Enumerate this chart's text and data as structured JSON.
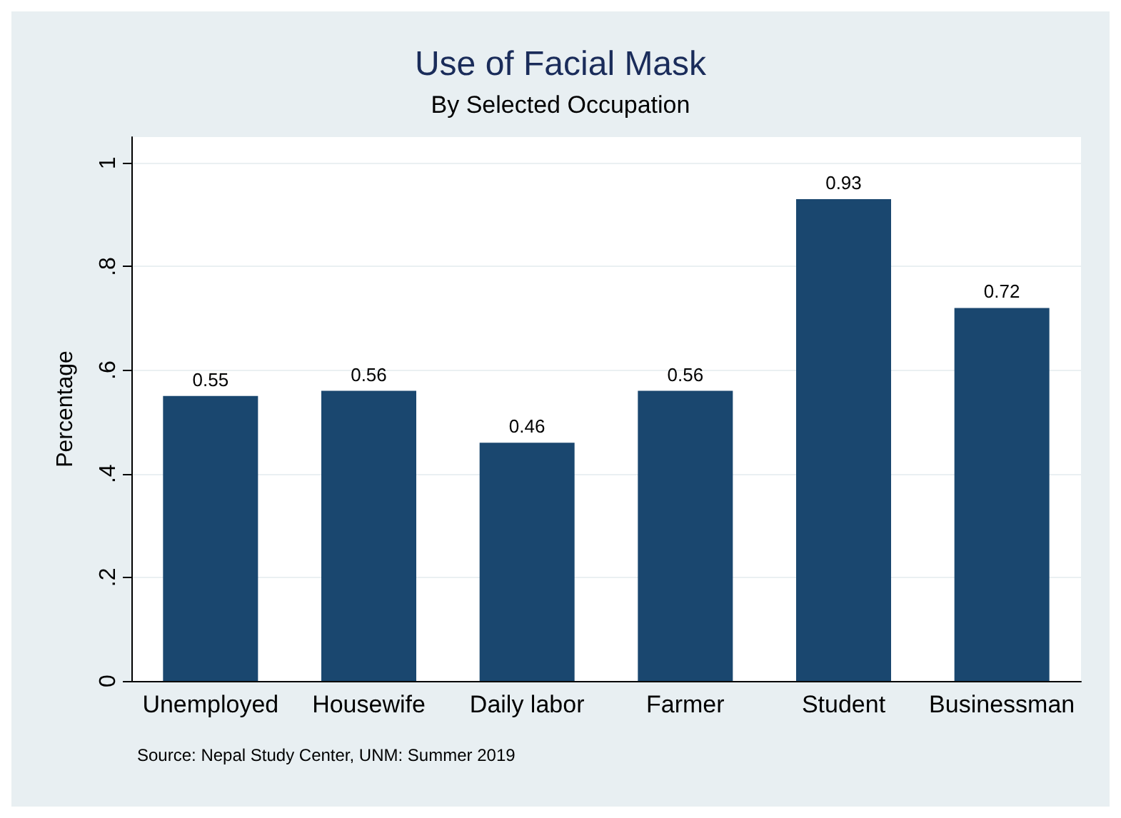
{
  "chart_data": {
    "type": "bar",
    "title": "Use of Facial Mask",
    "subtitle": "By Selected Occupation",
    "ylabel": "Percentage",
    "categories": [
      "Unemployed",
      "Housewife",
      "Daily labor",
      "Farmer",
      "Student",
      "Businessman"
    ],
    "values": [
      0.55,
      0.56,
      0.46,
      0.56,
      0.93,
      0.72
    ],
    "color": "#1a476f",
    "data_labels": true,
    "ylim": [
      0,
      1.05
    ],
    "yticks": [
      0,
      {
        "value": 0.2,
        "label": ".2"
      },
      {
        "value": 0.4,
        "label": ".4"
      },
      {
        "value": 0.6,
        "label": ".6"
      },
      {
        "value": 0.8,
        "label": ".8"
      },
      1
    ],
    "grid": "y",
    "annotations": [
      "Source: Nepal Study Center, UNM: Summer 2019"
    ]
  }
}
